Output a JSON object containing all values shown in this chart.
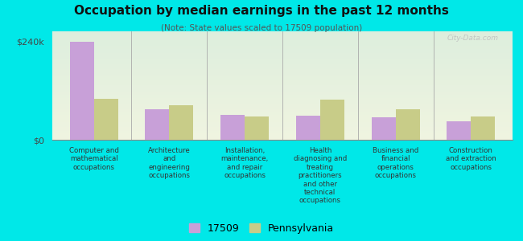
{
  "title": "Occupation by median earnings in the past 12 months",
  "subtitle": "(Note: State values scaled to 17509 population)",
  "background_color": "#00e8e8",
  "plot_bg_top": "#ddeedd",
  "plot_bg_bottom": "#f0f4e0",
  "categories": [
    "Computer and\nmathematical\noccupations",
    "Architecture\nand\nengineering\noccupations",
    "Installation,\nmaintenance,\nand repair\noccupations",
    "Health\ndiagnosing and\ntreating\npractitioners\nand other\ntechnical\noccupations",
    "Business and\nfinancial\noperations\noccupations",
    "Construction\nand extraction\noccupations"
  ],
  "values_17509": [
    240000,
    75000,
    60000,
    58000,
    54000,
    46000
  ],
  "values_pennsylvania": [
    100000,
    85000,
    57000,
    98000,
    74000,
    57000
  ],
  "color_17509": "#c8a0d8",
  "color_pennsylvania": "#c8cc88",
  "yticks": [
    0,
    240000
  ],
  "ylabels": [
    "$0",
    "$240k"
  ],
  "ylim": [
    0,
    265000
  ],
  "legend_17509": "17509",
  "legend_pennsylvania": "Pennsylvania",
  "watermark": "City-Data.com"
}
